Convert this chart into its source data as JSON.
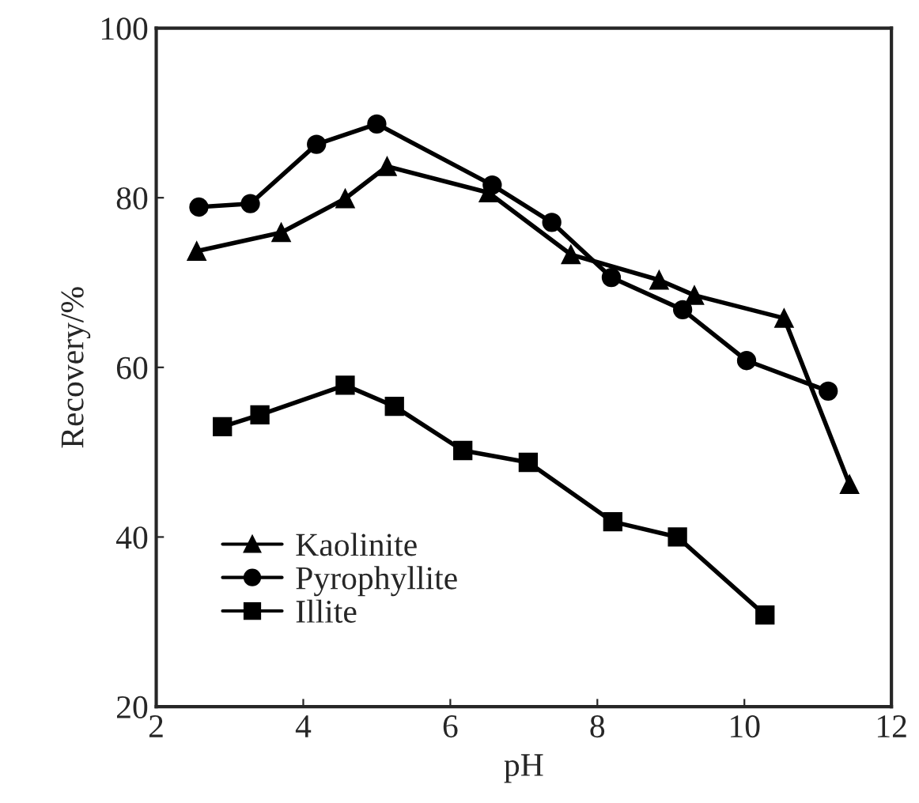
{
  "chart_data": {
    "type": "line",
    "xlabel": "pH",
    "ylabel": "Recovery/%",
    "xlim": [
      2,
      12
    ],
    "ylim": [
      20,
      100
    ],
    "xticks": [
      2,
      4,
      6,
      8,
      10,
      12
    ],
    "yticks": [
      20,
      40,
      60,
      80,
      100
    ],
    "grid": false,
    "legend": "bottom left",
    "line_style": "solid",
    "series": [
      {
        "name": "Kaolinite",
        "color": "#000000",
        "marker": "triangle",
        "x": [
          2.55,
          3.7,
          4.57,
          5.14,
          6.52,
          7.64,
          8.84,
          9.32,
          10.54,
          11.43
        ],
        "values": [
          73.7,
          75.9,
          79.9,
          83.7,
          80.6,
          73.3,
          70.3,
          68.5,
          65.8,
          46.2
        ]
      },
      {
        "name": "Pyrophyllite",
        "color": "#000000",
        "marker": "circle",
        "x": [
          2.58,
          3.28,
          4.18,
          5.0,
          6.57,
          7.38,
          8.19,
          9.16,
          10.03,
          11.14
        ],
        "values": [
          78.9,
          79.3,
          86.3,
          88.7,
          81.5,
          77.1,
          70.6,
          66.8,
          60.8,
          57.2
        ]
      },
      {
        "name": "Illite",
        "color": "#000000",
        "marker": "square",
        "x": [
          2.9,
          3.41,
          4.57,
          5.24,
          6.17,
          7.06,
          8.21,
          9.09,
          10.28
        ],
        "values": [
          53.0,
          54.4,
          57.9,
          55.4,
          50.2,
          48.8,
          41.8,
          40.0,
          30.8
        ]
      }
    ]
  }
}
